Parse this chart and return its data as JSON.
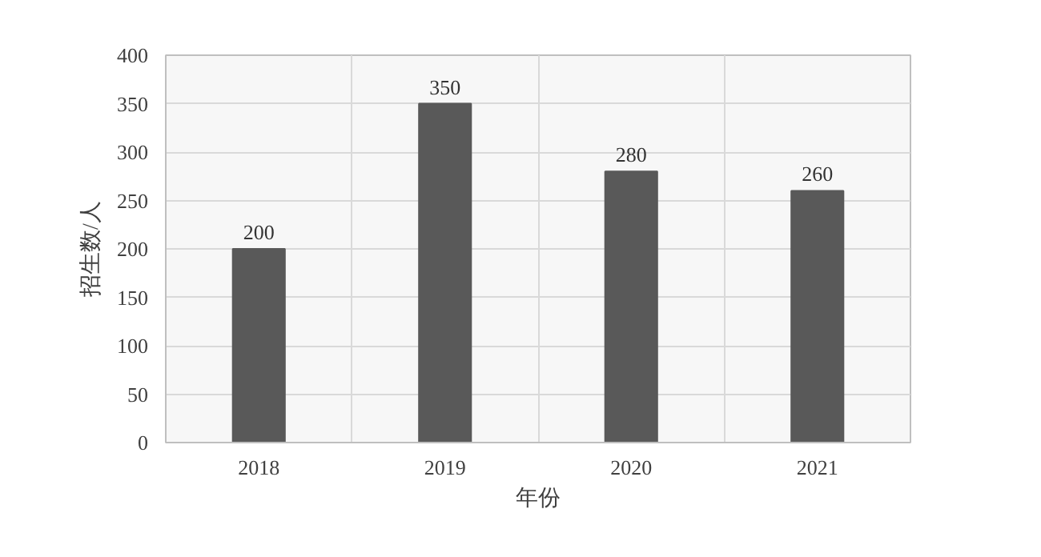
{
  "chart_data": {
    "type": "bar",
    "xlabel": "年份",
    "ylabel": "招生数/人",
    "categories": [
      "2018",
      "2019",
      "2020",
      "2021"
    ],
    "values": [
      200,
      350,
      280,
      260
    ],
    "color": "#595959",
    "ylim": [
      0,
      400
    ],
    "yticks": [
      0,
      50,
      100,
      150,
      200,
      250,
      300,
      350,
      400
    ],
    "grid": true,
    "data_labels": true
  }
}
